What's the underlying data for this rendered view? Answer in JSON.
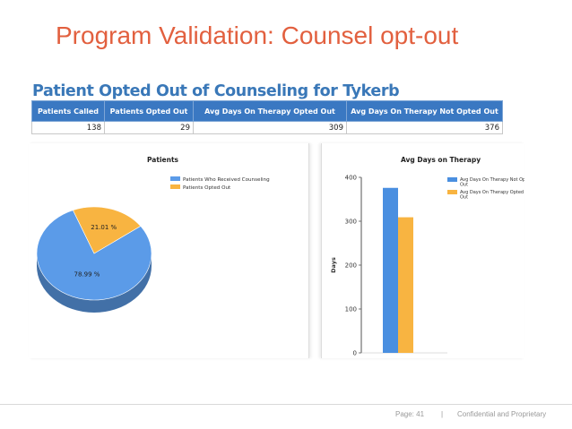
{
  "slide": {
    "title": "Program Validation: Counsel opt-out"
  },
  "report": {
    "title": "Patient Opted Out of Counseling for Tykerb",
    "columns": [
      "Patients Called",
      "Patients Opted Out",
      "Avg Days On Therapy Opted Out",
      "Avg Days On Therapy Not Opted Out"
    ],
    "values": [
      "138",
      "29",
      "309",
      "376"
    ],
    "header_color": "#3a78c2"
  },
  "footer": {
    "page_label": "Page: 41",
    "separator": "|",
    "confidential": "Confidential and Proprietary"
  },
  "chart_data": [
    {
      "type": "pie",
      "title": "Patients",
      "labels": [
        "Patients Who Received Counseling",
        "Patients Opted Out"
      ],
      "values": [
        78.99,
        21.01
      ],
      "value_labels": [
        "78.99 %",
        "21.01 %"
      ],
      "colors": [
        "#5b9be8",
        "#f8b441"
      ],
      "legend": "top-right",
      "style": "3d"
    },
    {
      "type": "bar",
      "title": "Avg Days on Therapy",
      "ylabel": "Days",
      "ylim": [
        0,
        400
      ],
      "yticks": [
        "0",
        "100",
        "200",
        "300",
        "400"
      ],
      "series": [
        {
          "name": "Avg Days On Therapy Not Opted Out",
          "values": [
            376
          ],
          "color": "#4a8fe0"
        },
        {
          "name": "Avg Days On Therapy Opted Out",
          "values": [
            309
          ],
          "color": "#f8b441"
        }
      ],
      "legend": "top-right",
      "grid": false
    }
  ]
}
